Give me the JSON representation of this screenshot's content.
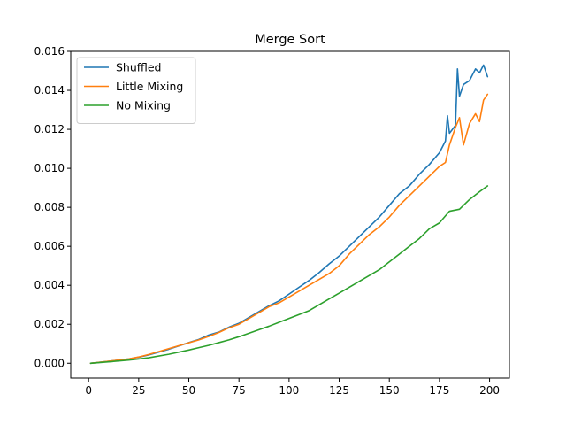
{
  "chart_data": {
    "type": "line",
    "title": "Merge Sort",
    "xlabel": "",
    "ylabel": "",
    "xlim": [
      -8.9,
      209.9
    ],
    "ylim": [
      -0.00076,
      0.016
    ],
    "xticks": [
      0,
      25,
      50,
      75,
      100,
      125,
      150,
      175,
      200
    ],
    "xtick_labels": [
      "0",
      "25",
      "50",
      "75",
      "100",
      "125",
      "150",
      "175",
      "200"
    ],
    "yticks": [
      0.0,
      0.002,
      0.004,
      0.006,
      0.008,
      0.01,
      0.012,
      0.014,
      0.016
    ],
    "ytick_labels": [
      "0.000",
      "0.002",
      "0.004",
      "0.006",
      "0.008",
      "0.010",
      "0.012",
      "0.014",
      "0.016"
    ],
    "grid": false,
    "legend_position": "top-left",
    "series": [
      {
        "name": "Shuffled",
        "color": "#1f77b4",
        "x": [
          1,
          10,
          20,
          25,
          30,
          40,
          50,
          55,
          60,
          65,
          70,
          75,
          80,
          85,
          90,
          95,
          100,
          105,
          110,
          115,
          120,
          125,
          130,
          135,
          140,
          145,
          150,
          155,
          160,
          165,
          170,
          175,
          178,
          179,
          180,
          183,
          184,
          185,
          187,
          190,
          193,
          195,
          197,
          199
        ],
        "y": [
          0.0,
          0.0001,
          0.00022,
          0.00031,
          0.00043,
          0.00072,
          0.00106,
          0.00122,
          0.00145,
          0.0016,
          0.00185,
          0.00205,
          0.00235,
          0.00265,
          0.00295,
          0.0032,
          0.00355,
          0.0039,
          0.00425,
          0.00465,
          0.0051,
          0.0055,
          0.006,
          0.0065,
          0.007,
          0.0075,
          0.0081,
          0.0087,
          0.0091,
          0.0097,
          0.0102,
          0.0108,
          0.0114,
          0.0127,
          0.0118,
          0.0122,
          0.0151,
          0.0137,
          0.0143,
          0.0145,
          0.0151,
          0.0149,
          0.0153,
          0.0147
        ]
      },
      {
        "name": "Little Mixing",
        "color": "#ff7f0e",
        "x": [
          1,
          10,
          20,
          25,
          30,
          40,
          50,
          55,
          60,
          65,
          70,
          75,
          80,
          85,
          90,
          95,
          100,
          105,
          110,
          115,
          120,
          125,
          130,
          135,
          140,
          145,
          150,
          155,
          160,
          165,
          170,
          175,
          178,
          180,
          183,
          185,
          187,
          190,
          193,
          195,
          197,
          199
        ],
        "y": [
          0.0,
          0.0001,
          0.00022,
          0.00032,
          0.00045,
          0.00075,
          0.00105,
          0.0012,
          0.00138,
          0.00158,
          0.00182,
          0.002,
          0.0023,
          0.0026,
          0.0029,
          0.0031,
          0.0034,
          0.0037,
          0.004,
          0.0043,
          0.0046,
          0.005,
          0.0056,
          0.0061,
          0.0066,
          0.007,
          0.0075,
          0.0081,
          0.0086,
          0.0091,
          0.0096,
          0.0101,
          0.0103,
          0.0112,
          0.0121,
          0.0126,
          0.0112,
          0.0123,
          0.0128,
          0.0124,
          0.0135,
          0.0138
        ]
      },
      {
        "name": "No Mixing",
        "color": "#2ca02c",
        "x": [
          1,
          10,
          20,
          25,
          30,
          40,
          50,
          55,
          60,
          65,
          70,
          75,
          80,
          85,
          90,
          95,
          100,
          105,
          110,
          115,
          120,
          125,
          130,
          135,
          140,
          145,
          150,
          155,
          160,
          165,
          170,
          175,
          180,
          185,
          190,
          195,
          199
        ],
        "y": [
          0.0,
          7e-05,
          0.00016,
          0.00022,
          0.00028,
          0.00046,
          0.00068,
          0.0008,
          0.00092,
          0.00106,
          0.0012,
          0.00136,
          0.00154,
          0.00172,
          0.0019,
          0.0021,
          0.0023,
          0.0025,
          0.0027,
          0.003,
          0.0033,
          0.0036,
          0.0039,
          0.0042,
          0.0045,
          0.0048,
          0.0052,
          0.0056,
          0.006,
          0.0064,
          0.0069,
          0.0072,
          0.0078,
          0.0079,
          0.0084,
          0.0088,
          0.0091
        ]
      }
    ]
  }
}
